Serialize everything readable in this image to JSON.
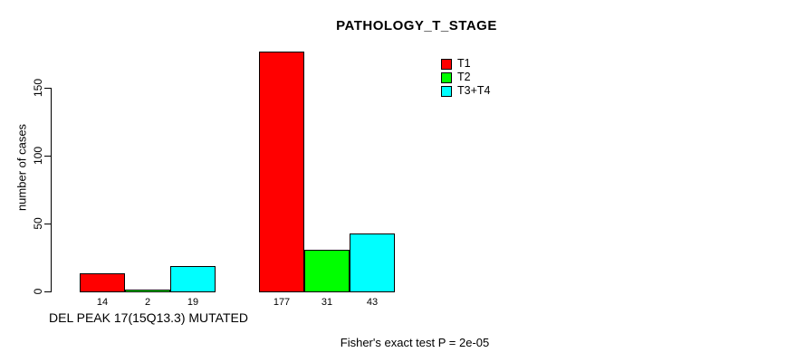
{
  "page": {
    "background": "#ffffff",
    "text_color": "#000000"
  },
  "chart_data": {
    "type": "bar",
    "title": "PATHOLOGY_T_STAGE",
    "xlabel": "",
    "ylabel": "number of cases",
    "ylim": [
      0,
      177
    ],
    "yticks": [
      0,
      50,
      100,
      150
    ],
    "grid": false,
    "legend_position": "top-right",
    "categories": [
      "DEL PEAK 17(15Q13.3) MUTATED",
      ""
    ],
    "series": [
      {
        "name": "T1",
        "color": "#ff0000",
        "values": [
          14,
          177
        ]
      },
      {
        "name": "T2",
        "color": "#00ff00",
        "values": [
          2,
          31
        ]
      },
      {
        "name": "T3+T4",
        "color": "#00ffff",
        "values": [
          19,
          43
        ]
      }
    ],
    "bar_value_labels": [
      [
        "14",
        "2",
        "19"
      ],
      [
        "177",
        "31",
        "43"
      ]
    ],
    "annotation": "Fisher's exact test P = 2e-05"
  }
}
